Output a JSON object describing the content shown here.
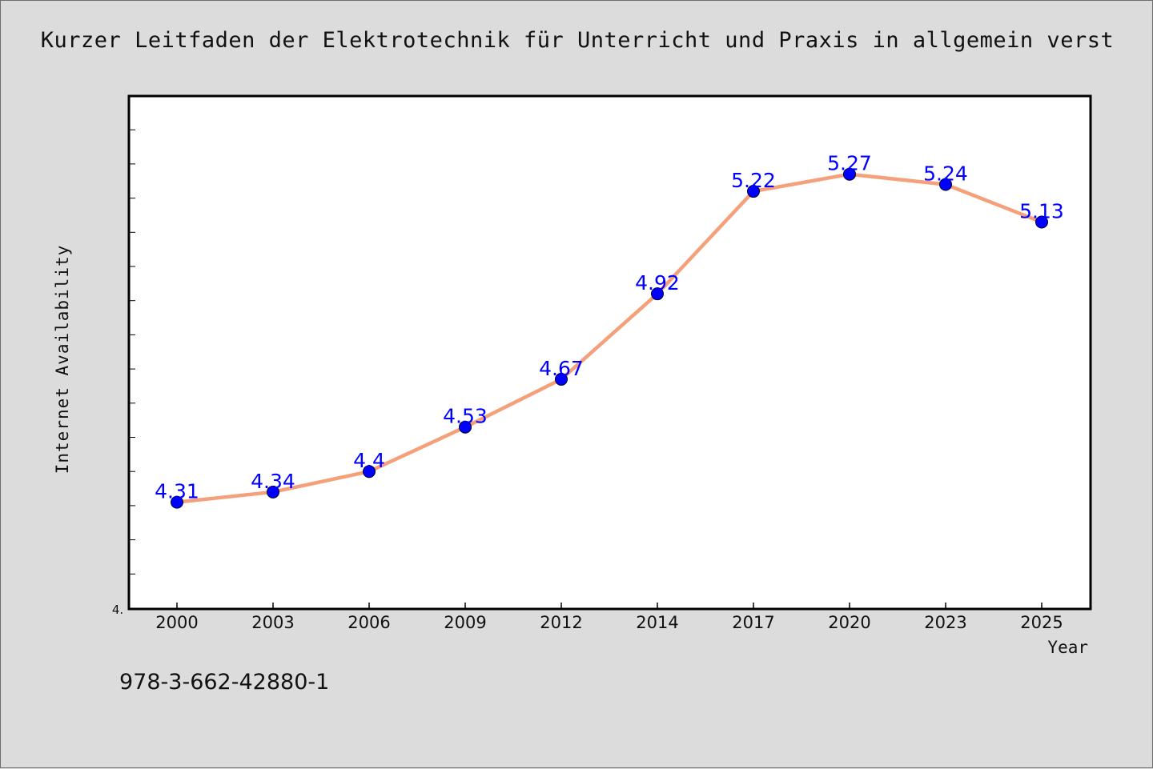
{
  "chart_data": {
    "type": "line",
    "title": "Kurzer Leitfaden der Elektrotechnik für Unterricht und Praxis in allgemein verst",
    "xlabel": "Year",
    "ylabel": "Internet Availability",
    "y_min_label": "4.",
    "x": [
      "2000",
      "2003",
      "2006",
      "2009",
      "2012",
      "2014",
      "2017",
      "2020",
      "2023",
      "2025"
    ],
    "series": [
      {
        "values": [
          4.31,
          4.34,
          4.4,
          4.53,
          4.67,
          4.92,
          5.22,
          5.27,
          5.24,
          5.13
        ],
        "labels": [
          "4.31",
          "4.34",
          "4.4",
          "4.53",
          "4.67",
          "4.92",
          "5.22",
          "5.27",
          "5.24",
          "5.13"
        ],
        "line_color": "#f4a07a",
        "marker_color": "#0000ff"
      }
    ],
    "ylim": [
      4.0,
      5.5
    ],
    "grid": false,
    "legend": "none"
  },
  "footer": {
    "isbn": "978-3-662-42880-1"
  }
}
